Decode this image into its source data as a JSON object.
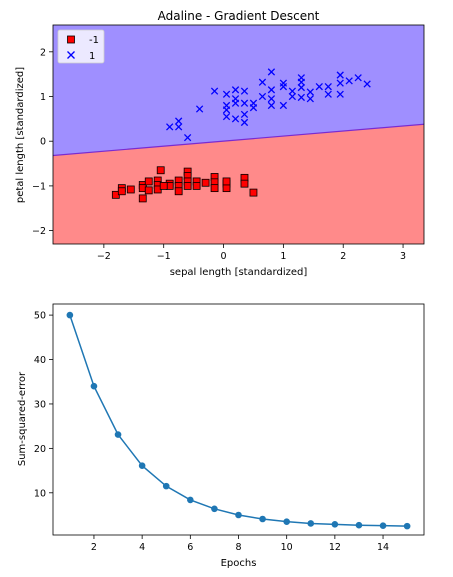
{
  "chart_data": [
    {
      "type": "scatter",
      "title": "Adaline - Gradient Descent",
      "xlabel": "sepal length [standardized]",
      "ylabel": "petal length [standardized]",
      "xlim": [
        -2.85,
        3.35
      ],
      "ylim": [
        -2.3,
        2.6
      ],
      "xticks": [
        -2,
        -1,
        0,
        1,
        2,
        3
      ],
      "yticks": [
        -2,
        -1,
        0,
        1,
        2
      ],
      "decision_boundary": {
        "x": [
          -2.85,
          3.35
        ],
        "y": [
          -0.32,
          0.38
        ]
      },
      "region_colors": {
        "upper": "#9f8fff",
        "lower": "#ff8a8a"
      },
      "legend_position": "upper-left",
      "series": [
        {
          "name": "-1",
          "marker": "square",
          "color": "#ff0000",
          "points": [
            [
              -1.8,
              -1.2
            ],
            [
              -1.7,
              -1.05
            ],
            [
              -1.7,
              -1.12
            ],
            [
              -1.55,
              -1.08
            ],
            [
              -1.35,
              -0.98
            ],
            [
              -1.35,
              -1.05
            ],
            [
              -1.35,
              -1.28
            ],
            [
              -1.25,
              -0.9
            ],
            [
              -1.25,
              -1.1
            ],
            [
              -1.1,
              -0.88
            ],
            [
              -1.1,
              -0.98
            ],
            [
              -1.1,
              -1.08
            ],
            [
              -1.05,
              -0.65
            ],
            [
              -0.9,
              -0.95
            ],
            [
              -0.9,
              -1.0
            ],
            [
              -0.75,
              -0.88
            ],
            [
              -0.75,
              -1.0
            ],
            [
              -0.75,
              -1.12
            ],
            [
              -0.6,
              -0.68
            ],
            [
              -0.6,
              -0.78
            ],
            [
              -0.6,
              -0.9
            ],
            [
              -0.6,
              -1.0
            ],
            [
              -0.45,
              -0.9
            ],
            [
              -0.45,
              -1.0
            ],
            [
              -0.3,
              -0.93
            ],
            [
              -0.15,
              -0.8
            ],
            [
              -0.15,
              -0.92
            ],
            [
              -0.15,
              -1.05
            ],
            [
              0.05,
              -0.95
            ],
            [
              0.05,
              -1.05
            ],
            [
              0.35,
              -0.82
            ],
            [
              0.35,
              -0.95
            ],
            [
              0.5,
              -1.15
            ],
            [
              0.05,
              -0.9
            ],
            [
              -1.0,
              -1.0
            ]
          ]
        },
        {
          "name": "1",
          "marker": "x",
          "color": "#0000ff",
          "points": [
            [
              -0.9,
              0.32
            ],
            [
              -0.75,
              0.45
            ],
            [
              -0.75,
              0.32
            ],
            [
              -0.6,
              0.08
            ],
            [
              -0.4,
              0.72
            ],
            [
              -0.15,
              1.12
            ],
            [
              0.05,
              0.55
            ],
            [
              0.05,
              0.7
            ],
            [
              0.05,
              0.8
            ],
            [
              0.05,
              1.05
            ],
            [
              0.2,
              0.5
            ],
            [
              0.2,
              0.85
            ],
            [
              0.2,
              0.95
            ],
            [
              0.2,
              1.15
            ],
            [
              0.35,
              0.42
            ],
            [
              0.35,
              0.6
            ],
            [
              0.35,
              0.85
            ],
            [
              0.35,
              1.12
            ],
            [
              0.5,
              0.75
            ],
            [
              0.5,
              0.85
            ],
            [
              0.65,
              1.0
            ],
            [
              0.65,
              1.32
            ],
            [
              0.8,
              0.8
            ],
            [
              0.8,
              0.95
            ],
            [
              0.8,
              1.15
            ],
            [
              0.8,
              1.55
            ],
            [
              1.0,
              0.8
            ],
            [
              1.0,
              1.22
            ],
            [
              1.0,
              1.3
            ],
            [
              1.15,
              1.0
            ],
            [
              1.15,
              1.12
            ],
            [
              1.3,
              0.98
            ],
            [
              1.3,
              1.2
            ],
            [
              1.3,
              1.32
            ],
            [
              1.3,
              1.42
            ],
            [
              1.45,
              0.95
            ],
            [
              1.45,
              1.1
            ],
            [
              1.6,
              1.22
            ],
            [
              1.75,
              1.05
            ],
            [
              1.75,
              1.22
            ],
            [
              1.95,
              1.05
            ],
            [
              1.95,
              1.3
            ],
            [
              1.95,
              1.48
            ],
            [
              2.1,
              1.35
            ],
            [
              2.25,
              1.42
            ],
            [
              2.4,
              1.28
            ]
          ]
        }
      ]
    },
    {
      "type": "line",
      "title": "",
      "xlabel": "Epochs",
      "ylabel": "Sum-squared-error",
      "xlim": [
        0.3,
        15.7
      ],
      "ylim": [
        0.5,
        52.5
      ],
      "xticks": [
        2,
        4,
        6,
        8,
        10,
        12,
        14
      ],
      "yticks": [
        10,
        20,
        30,
        40,
        50
      ],
      "color": "#1f77b4",
      "x": [
        1,
        2,
        3,
        4,
        5,
        6,
        7,
        8,
        9,
        10,
        11,
        12,
        13,
        14,
        15
      ],
      "y": [
        50.0,
        34.0,
        23.1,
        16.1,
        11.5,
        8.4,
        6.4,
        5.0,
        4.1,
        3.5,
        3.1,
        2.9,
        2.7,
        2.6,
        2.5
      ]
    }
  ]
}
